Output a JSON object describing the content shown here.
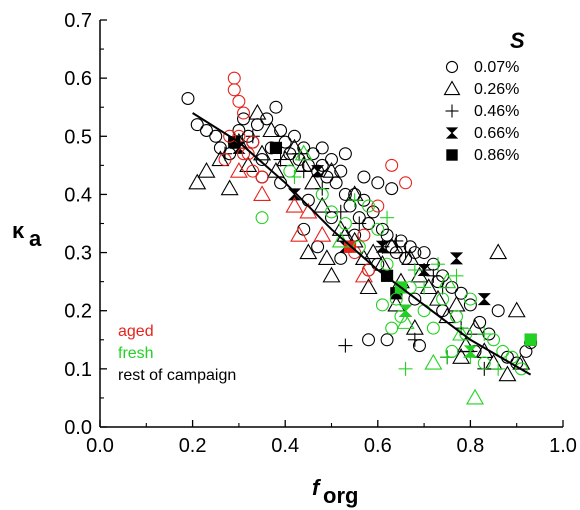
{
  "chart_data": {
    "type": "scatter",
    "xlabel": "f",
    "xlabel_sub": "org",
    "ylabel": "κ",
    "ylabel_sub": "a",
    "xlim": [
      0.0,
      1.0
    ],
    "ylim": [
      0.0,
      0.7
    ],
    "x_ticks": [
      "0.0",
      "0.2",
      "0.4",
      "0.6",
      "0.8",
      "1.0"
    ],
    "y_ticks": [
      "0.0",
      "0.1",
      "0.2",
      "0.3",
      "0.4",
      "0.5",
      "0.6",
      "0.7"
    ],
    "grid": false,
    "legend_title": "S",
    "legend_position": "top-right",
    "legend": [
      {
        "marker": "circle",
        "label": "0.07%"
      },
      {
        "marker": "triangle",
        "label": "0.26%"
      },
      {
        "marker": "plus",
        "label": "0.46%"
      },
      {
        "marker": "hourglass",
        "label": "0.66%"
      },
      {
        "marker": "square",
        "label": "0.86%"
      }
    ],
    "group_labels": [
      {
        "text": "aged",
        "color": "#e8231c"
      },
      {
        "text": "fresh",
        "color": "#22d222"
      },
      {
        "text": "rest of campaign",
        "color": "#000000"
      }
    ],
    "fit_line": [
      [
        0.2,
        0.54
      ],
      [
        0.3,
        0.49
      ],
      [
        0.4,
        0.42
      ],
      [
        0.5,
        0.34
      ],
      [
        0.6,
        0.27
      ],
      [
        0.7,
        0.21
      ],
      [
        0.8,
        0.15
      ],
      [
        0.93,
        0.09
      ]
    ],
    "series": [
      {
        "marker": "circle",
        "color": "#000000",
        "points": [
          [
            0.19,
            0.565
          ],
          [
            0.21,
            0.52
          ],
          [
            0.23,
            0.51
          ],
          [
            0.25,
            0.5
          ],
          [
            0.26,
            0.48
          ],
          [
            0.28,
            0.47
          ],
          [
            0.29,
            0.49
          ],
          [
            0.3,
            0.51
          ],
          [
            0.31,
            0.53
          ],
          [
            0.32,
            0.5
          ],
          [
            0.33,
            0.49
          ],
          [
            0.34,
            0.52
          ],
          [
            0.35,
            0.46
          ],
          [
            0.36,
            0.53
          ],
          [
            0.37,
            0.48
          ],
          [
            0.38,
            0.55
          ],
          [
            0.39,
            0.51
          ],
          [
            0.4,
            0.49
          ],
          [
            0.41,
            0.47
          ],
          [
            0.42,
            0.5
          ],
          [
            0.43,
            0.46
          ],
          [
            0.44,
            0.48
          ],
          [
            0.45,
            0.45
          ],
          [
            0.46,
            0.47
          ],
          [
            0.47,
            0.44
          ],
          [
            0.48,
            0.45
          ],
          [
            0.49,
            0.43
          ],
          [
            0.5,
            0.46
          ],
          [
            0.51,
            0.42
          ],
          [
            0.52,
            0.44
          ],
          [
            0.53,
            0.4
          ],
          [
            0.54,
            0.38
          ],
          [
            0.55,
            0.4
          ],
          [
            0.56,
            0.36
          ],
          [
            0.57,
            0.39
          ],
          [
            0.58,
            0.35
          ],
          [
            0.59,
            0.37
          ],
          [
            0.6,
            0.42
          ],
          [
            0.61,
            0.34
          ],
          [
            0.62,
            0.33
          ],
          [
            0.63,
            0.31
          ],
          [
            0.64,
            0.3
          ],
          [
            0.65,
            0.32
          ],
          [
            0.66,
            0.29
          ],
          [
            0.67,
            0.31
          ],
          [
            0.68,
            0.3
          ],
          [
            0.7,
            0.3
          ],
          [
            0.72,
            0.28
          ],
          [
            0.74,
            0.26
          ],
          [
            0.76,
            0.24
          ],
          [
            0.78,
            0.23
          ],
          [
            0.8,
            0.21
          ],
          [
            0.82,
            0.18
          ],
          [
            0.84,
            0.16
          ],
          [
            0.86,
            0.2
          ],
          [
            0.88,
            0.12
          ],
          [
            0.9,
            0.11
          ],
          [
            0.92,
            0.13
          ],
          [
            0.93,
            0.145
          ],
          [
            0.39,
            0.42
          ],
          [
            0.45,
            0.39
          ],
          [
            0.5,
            0.36
          ],
          [
            0.55,
            0.33
          ],
          [
            0.6,
            0.28
          ],
          [
            0.35,
            0.43
          ],
          [
            0.47,
            0.31
          ],
          [
            0.58,
            0.27
          ],
          [
            0.68,
            0.22
          ],
          [
            0.74,
            0.2
          ],
          [
            0.62,
            0.15
          ],
          [
            0.58,
            0.15
          ],
          [
            0.48,
            0.48
          ],
          [
            0.53,
            0.47
          ],
          [
            0.57,
            0.43
          ],
          [
            0.63,
            0.41
          ],
          [
            0.73,
            0.25
          ],
          [
            0.81,
            0.13
          ],
          [
            0.69,
            0.14
          ],
          [
            0.52,
            0.29
          ],
          [
            0.44,
            0.34
          ]
        ]
      },
      {
        "marker": "triangle",
        "color": "#000000",
        "points": [
          [
            0.21,
            0.42
          ],
          [
            0.23,
            0.44
          ],
          [
            0.26,
            0.46
          ],
          [
            0.28,
            0.41
          ],
          [
            0.3,
            0.49
          ],
          [
            0.32,
            0.45
          ],
          [
            0.34,
            0.54
          ],
          [
            0.35,
            0.47
          ],
          [
            0.37,
            0.51
          ],
          [
            0.38,
            0.44
          ],
          [
            0.4,
            0.46
          ],
          [
            0.42,
            0.48
          ],
          [
            0.44,
            0.45
          ],
          [
            0.46,
            0.42
          ],
          [
            0.48,
            0.38
          ],
          [
            0.5,
            0.44
          ],
          [
            0.52,
            0.34
          ],
          [
            0.53,
            0.33
          ],
          [
            0.55,
            0.32
          ],
          [
            0.57,
            0.29
          ],
          [
            0.59,
            0.3
          ],
          [
            0.61,
            0.28
          ],
          [
            0.63,
            0.31
          ],
          [
            0.65,
            0.25
          ],
          [
            0.67,
            0.29
          ],
          [
            0.69,
            0.26
          ],
          [
            0.71,
            0.24
          ],
          [
            0.73,
            0.22
          ],
          [
            0.75,
            0.19
          ],
          [
            0.77,
            0.21
          ],
          [
            0.79,
            0.14
          ],
          [
            0.81,
            0.17
          ],
          [
            0.83,
            0.13
          ],
          [
            0.85,
            0.11
          ],
          [
            0.86,
            0.3
          ],
          [
            0.88,
            0.09
          ],
          [
            0.9,
            0.2
          ],
          [
            0.91,
            0.11
          ],
          [
            0.45,
            0.3
          ],
          [
            0.5,
            0.26
          ],
          [
            0.58,
            0.24
          ],
          [
            0.68,
            0.17
          ],
          [
            0.78,
            0.12
          ],
          [
            0.49,
            0.29
          ],
          [
            0.55,
            0.4
          ],
          [
            0.64,
            0.21
          ]
        ]
      },
      {
        "marker": "plus",
        "color": "#000000",
        "points": [
          [
            0.27,
            0.47
          ],
          [
            0.33,
            0.5
          ],
          [
            0.39,
            0.46
          ],
          [
            0.44,
            0.44
          ],
          [
            0.48,
            0.41
          ],
          [
            0.52,
            0.37
          ],
          [
            0.56,
            0.35
          ],
          [
            0.61,
            0.31
          ],
          [
            0.64,
            0.32
          ],
          [
            0.66,
            0.3
          ],
          [
            0.7,
            0.27
          ],
          [
            0.72,
            0.26
          ],
          [
            0.74,
            0.24
          ],
          [
            0.78,
            0.17
          ],
          [
            0.8,
            0.13
          ],
          [
            0.83,
            0.1
          ],
          [
            0.53,
            0.14
          ],
          [
            0.68,
            0.15
          ],
          [
            0.75,
            0.12
          ],
          [
            0.43,
            0.47
          ]
        ]
      },
      {
        "marker": "hourglass",
        "color": "#000000",
        "points": [
          [
            0.3,
            0.48
          ],
          [
            0.42,
            0.4
          ],
          [
            0.47,
            0.44
          ],
          [
            0.53,
            0.31
          ],
          [
            0.61,
            0.31
          ],
          [
            0.66,
            0.2
          ],
          [
            0.7,
            0.27
          ],
          [
            0.77,
            0.29
          ],
          [
            0.83,
            0.22
          ]
        ]
      },
      {
        "marker": "square",
        "color": "#000000",
        "points": [
          [
            0.29,
            0.49
          ],
          [
            0.38,
            0.48
          ],
          [
            0.62,
            0.26
          ],
          [
            0.64,
            0.23
          ],
          [
            0.93,
            0.15
          ]
        ]
      },
      {
        "marker": "circle",
        "color": "#e8231c",
        "points": [
          [
            0.29,
            0.6
          ],
          [
            0.29,
            0.58
          ],
          [
            0.3,
            0.56
          ],
          [
            0.31,
            0.54
          ],
          [
            0.3,
            0.5
          ],
          [
            0.32,
            0.47
          ],
          [
            0.27,
            0.46
          ],
          [
            0.33,
            0.44
          ],
          [
            0.35,
            0.43
          ],
          [
            0.33,
            0.49
          ],
          [
            0.55,
            0.3
          ],
          [
            0.58,
            0.27
          ],
          [
            0.57,
            0.33
          ],
          [
            0.63,
            0.45
          ],
          [
            0.66,
            0.42
          ],
          [
            0.6,
            0.38
          ],
          [
            0.28,
            0.5
          ],
          [
            0.31,
            0.47
          ]
        ]
      },
      {
        "marker": "triangle",
        "color": "#e8231c",
        "points": [
          [
            0.3,
            0.44
          ],
          [
            0.35,
            0.4
          ],
          [
            0.42,
            0.38
          ],
          [
            0.45,
            0.37
          ],
          [
            0.48,
            0.33
          ],
          [
            0.43,
            0.33
          ],
          [
            0.57,
            0.26
          ]
        ]
      },
      {
        "marker": "square",
        "color": "#e8231c",
        "points": [
          [
            0.54,
            0.31
          ]
        ]
      },
      {
        "marker": "circle",
        "color": "#22d222",
        "points": [
          [
            0.35,
            0.36
          ],
          [
            0.41,
            0.44
          ],
          [
            0.48,
            0.4
          ],
          [
            0.5,
            0.37
          ],
          [
            0.56,
            0.31
          ],
          [
            0.6,
            0.34
          ],
          [
            0.62,
            0.28
          ],
          [
            0.64,
            0.22
          ],
          [
            0.65,
            0.19
          ],
          [
            0.67,
            0.24
          ],
          [
            0.7,
            0.2
          ],
          [
            0.72,
            0.17
          ],
          [
            0.74,
            0.22
          ],
          [
            0.76,
            0.13
          ],
          [
            0.77,
            0.19
          ],
          [
            0.79,
            0.16
          ],
          [
            0.8,
            0.22
          ],
          [
            0.83,
            0.11
          ],
          [
            0.85,
            0.15
          ],
          [
            0.87,
            0.13
          ],
          [
            0.89,
            0.12
          ],
          [
            0.91,
            0.1
          ],
          [
            0.61,
            0.21
          ],
          [
            0.63,
            0.17
          ],
          [
            0.58,
            0.38
          ],
          [
            0.53,
            0.35
          ]
        ]
      },
      {
        "marker": "triangle",
        "color": "#22d222",
        "points": [
          [
            0.44,
            0.47
          ],
          [
            0.52,
            0.32
          ],
          [
            0.66,
            0.18
          ],
          [
            0.75,
            0.25
          ],
          [
            0.81,
            0.05
          ],
          [
            0.72,
            0.11
          ],
          [
            0.78,
            0.16
          ]
        ]
      },
      {
        "marker": "plus",
        "color": "#22d222",
        "points": [
          [
            0.42,
            0.43
          ],
          [
            0.55,
            0.39
          ],
          [
            0.62,
            0.36
          ],
          [
            0.66,
            0.1
          ],
          [
            0.7,
            0.24
          ],
          [
            0.73,
            0.28
          ],
          [
            0.77,
            0.26
          ],
          [
            0.8,
            0.12
          ],
          [
            0.86,
            0.1
          ],
          [
            0.75,
            0.12
          ],
          [
            0.68,
            0.27
          ],
          [
            0.83,
            0.16
          ]
        ]
      },
      {
        "marker": "hourglass",
        "color": "#22d222",
        "points": [
          [
            0.66,
            0.2
          ],
          [
            0.8,
            0.13
          ]
        ]
      },
      {
        "marker": "square",
        "color": "#22d222",
        "points": [
          [
            0.65,
            0.24
          ],
          [
            0.93,
            0.15
          ]
        ]
      }
    ]
  }
}
